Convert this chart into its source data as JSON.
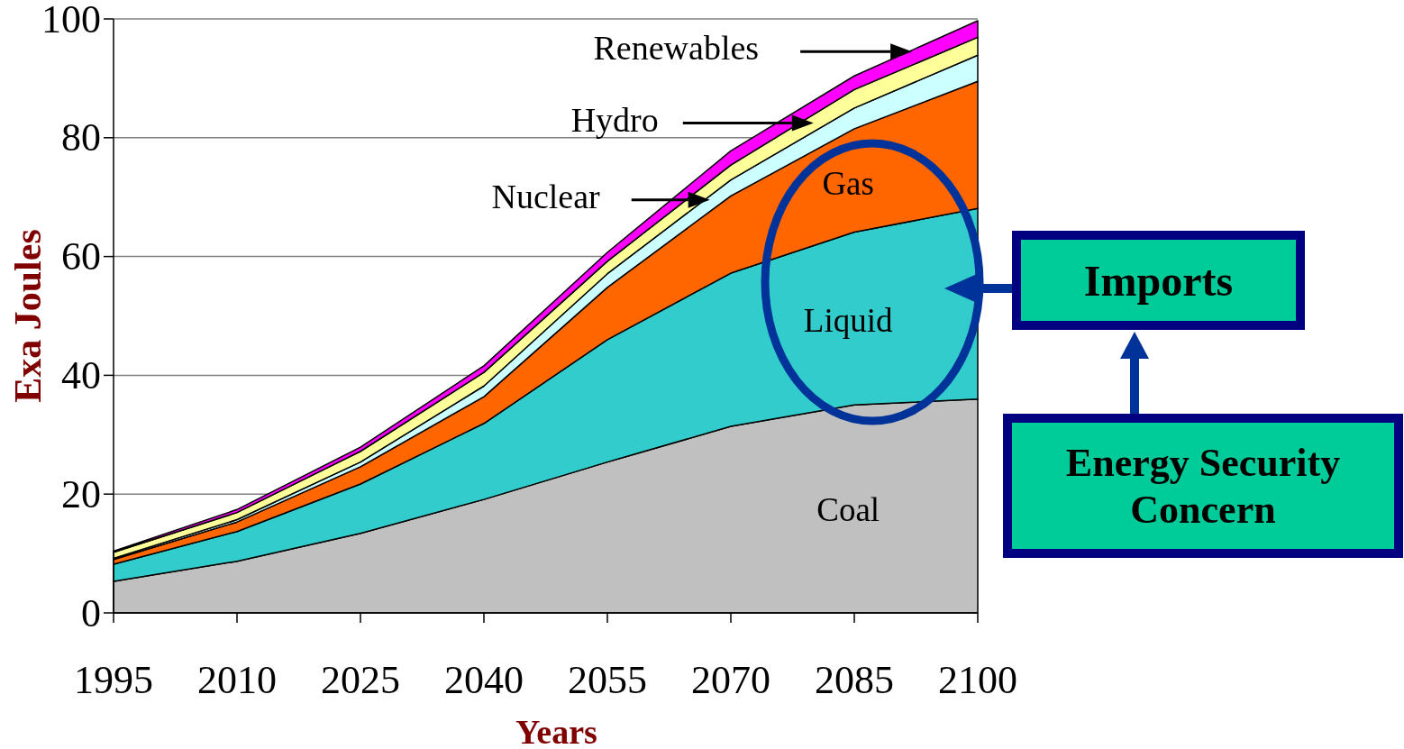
{
  "chart_data": {
    "type": "area",
    "stacked": true,
    "xlabel": "Years",
    "ylabel": "Exa Joules",
    "x": [
      1995,
      2010,
      2025,
      2040,
      2055,
      2070,
      2085,
      2100
    ],
    "xlim": [
      1995,
      2100
    ],
    "xticks": [
      1995,
      2010,
      2025,
      2040,
      2055,
      2070,
      2085,
      2100
    ],
    "ylim": [
      0,
      100
    ],
    "yticks": [
      0,
      20,
      40,
      60,
      80,
      100
    ],
    "grid": "y",
    "legend": "top",
    "series": [
      {
        "name": "Coal",
        "color": "#c0c0c0",
        "values": [
          5.3,
          8.7,
          13.4,
          19.1,
          25.4,
          31.4,
          35.0,
          36.0
        ]
      },
      {
        "name": "Liquid",
        "color": "#33cccc",
        "values": [
          2.9,
          5.0,
          8.3,
          12.8,
          20.6,
          25.8,
          29.1,
          32.1
        ]
      },
      {
        "name": "Gas",
        "color": "#ff6600",
        "values": [
          0.8,
          1.6,
          2.9,
          4.5,
          8.8,
          13.0,
          17.4,
          21.4
        ]
      },
      {
        "name": "Nuclear",
        "color": "#ccffff",
        "values": [
          0.2,
          0.4,
          0.8,
          1.8,
          2.3,
          2.7,
          3.5,
          4.4
        ]
      },
      {
        "name": "Hydro",
        "color": "#ffff99",
        "values": [
          1.0,
          1.2,
          1.8,
          2.3,
          2.1,
          2.5,
          3.1,
          3.0
        ]
      },
      {
        "name": "Renewables",
        "color": "#ff00ff",
        "values": [
          0.2,
          0.5,
          0.7,
          1.1,
          1.5,
          2.4,
          2.3,
          2.8
        ]
      }
    ],
    "annotations": [
      "Imports",
      "Energy Security Concern"
    ]
  }
}
